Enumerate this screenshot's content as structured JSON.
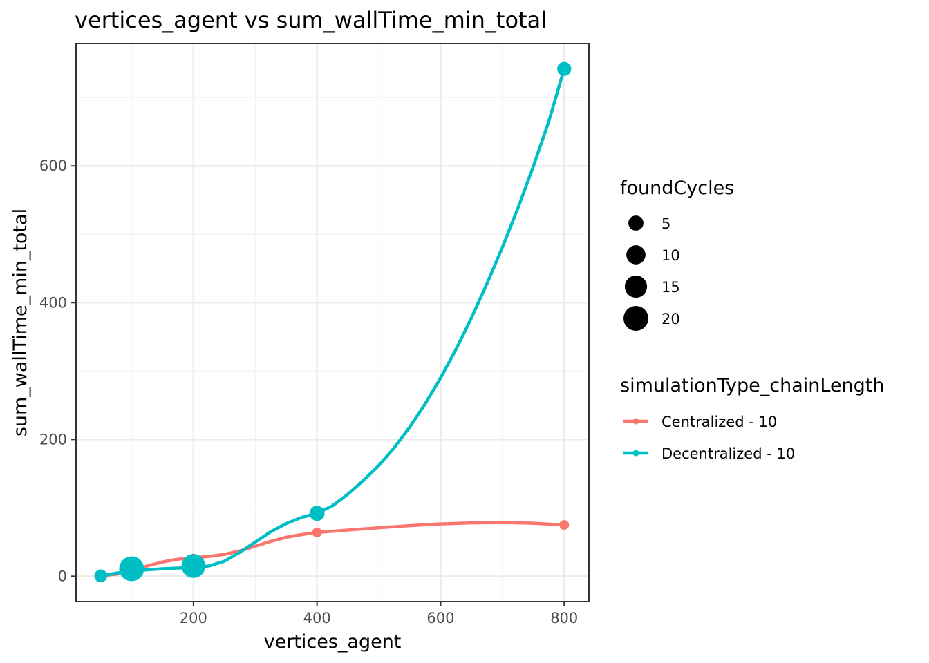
{
  "chart_data": {
    "type": "line",
    "title": "vertices_agent  vs  sum_wallTime_min_total",
    "xlabel": "vertices_agent",
    "ylabel": "sum_wallTime_min_total",
    "xlim": [
      10,
      840
    ],
    "ylim": [
      -37,
      779
    ],
    "x_ticks": [
      200,
      400,
      600,
      800
    ],
    "y_ticks": [
      0,
      200,
      400,
      600
    ],
    "grid": true,
    "series": [
      {
        "name": "Centralized - 10",
        "color": "#F8766D",
        "points": [
          {
            "x": 50,
            "y": 0.5,
            "foundCycles": 1
          },
          {
            "x": 100,
            "y": 9,
            "foundCycles": 1
          },
          {
            "x": 200,
            "y": 26,
            "foundCycles": 1
          },
          {
            "x": 400,
            "y": 64,
            "foundCycles": 1
          },
          {
            "x": 800,
            "y": 75,
            "foundCycles": 1
          }
        ],
        "smooth": [
          [
            50,
            0.5
          ],
          [
            75,
            3
          ],
          [
            100,
            9
          ],
          [
            125,
            15
          ],
          [
            150,
            21
          ],
          [
            175,
            25
          ],
          [
            200,
            27
          ],
          [
            225,
            29
          ],
          [
            250,
            32
          ],
          [
            275,
            37
          ],
          [
            300,
            44
          ],
          [
            325,
            51
          ],
          [
            350,
            57
          ],
          [
            375,
            61
          ],
          [
            400,
            64
          ],
          [
            450,
            67.5
          ],
          [
            500,
            71
          ],
          [
            550,
            74
          ],
          [
            600,
            76.5
          ],
          [
            650,
            78
          ],
          [
            700,
            78.5
          ],
          [
            750,
            77.5
          ],
          [
            800,
            75
          ]
        ]
      },
      {
        "name": "Decentralized - 10",
        "color": "#00BFC4",
        "points": [
          {
            "x": 50,
            "y": 0.5,
            "foundCycles": 3
          },
          {
            "x": 100,
            "y": 11,
            "foundCycles": 20
          },
          {
            "x": 200,
            "y": 15,
            "foundCycles": 18
          },
          {
            "x": 400,
            "y": 92,
            "foundCycles": 5
          },
          {
            "x": 800,
            "y": 742,
            "foundCycles": 4
          }
        ],
        "smooth": [
          [
            50,
            0.5
          ],
          [
            75,
            4.5
          ],
          [
            100,
            8
          ],
          [
            125,
            9.5
          ],
          [
            150,
            11
          ],
          [
            175,
            12
          ],
          [
            200,
            13
          ],
          [
            225,
            15
          ],
          [
            250,
            22
          ],
          [
            275,
            35
          ],
          [
            300,
            50
          ],
          [
            325,
            65
          ],
          [
            350,
            77
          ],
          [
            375,
            86
          ],
          [
            400,
            92
          ],
          [
            425,
            103
          ],
          [
            450,
            120
          ],
          [
            475,
            140
          ],
          [
            500,
            162
          ],
          [
            525,
            188
          ],
          [
            550,
            218
          ],
          [
            575,
            252
          ],
          [
            600,
            290
          ],
          [
            625,
            332
          ],
          [
            650,
            378
          ],
          [
            675,
            428
          ],
          [
            700,
            481
          ],
          [
            725,
            538
          ],
          [
            750,
            599
          ],
          [
            775,
            665
          ],
          [
            800,
            742
          ]
        ]
      }
    ],
    "legends": {
      "size": {
        "title": "foundCycles",
        "entries": [
          {
            "label": "5",
            "value": 5
          },
          {
            "label": "10",
            "value": 10
          },
          {
            "label": "15",
            "value": 15
          },
          {
            "label": "20",
            "value": 20
          }
        ]
      },
      "color": {
        "title": "simulationType_chainLength",
        "entries": [
          {
            "label": "Centralized - 10",
            "color": "#F8766D"
          },
          {
            "label": "Decentralized - 10",
            "color": "#00BFC4"
          }
        ]
      }
    }
  }
}
